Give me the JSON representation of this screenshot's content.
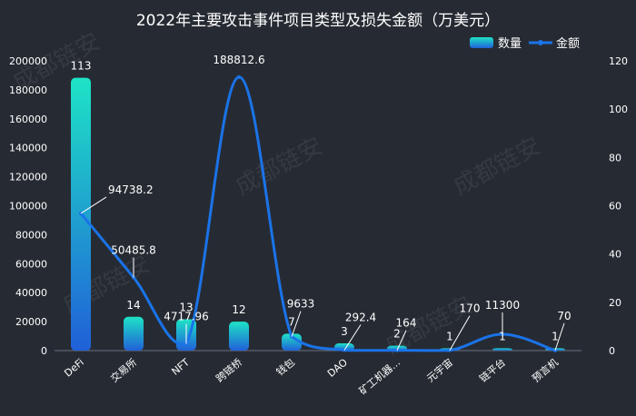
{
  "chart_data": {
    "type": "bar",
    "title": "2022年主要攻击事件项目类型及损失金额（万美元）",
    "categories": [
      "DeFi",
      "交易所",
      "NFT",
      "跨链桥",
      "钱包",
      "DAO",
      "矿工机器...",
      "元宇宙",
      "链平台",
      "预言机"
    ],
    "series": [
      {
        "name": "数量",
        "type": "bar",
        "axis": "right",
        "values": [
          113,
          14,
          13,
          12,
          7,
          3,
          2,
          1,
          1,
          1
        ]
      },
      {
        "name": "金额",
        "type": "line",
        "axis": "left",
        "values": [
          94738.2,
          50485.8,
          4717.96,
          188812.6,
          9633,
          292.4,
          164,
          170,
          11300,
          70
        ]
      }
    ],
    "value_labels": {
      "bar": [
        "113",
        "14",
        "13",
        "12",
        "7",
        "3",
        "2",
        "1",
        "1",
        "1"
      ],
      "line": [
        "94738.2",
        "50485.8",
        "4717.96",
        "188812.6",
        "9633",
        "292.4",
        "164",
        "170",
        "11300",
        "70"
      ]
    },
    "yleft": {
      "ticks": [
        0,
        20000,
        40000,
        60000,
        80000,
        100000,
        120000,
        140000,
        160000,
        180000,
        200000
      ],
      "range": [
        0,
        200000
      ]
    },
    "yright": {
      "ticks": [
        0,
        20,
        40,
        60,
        80,
        100,
        120
      ],
      "range": [
        0,
        120
      ]
    },
    "legend": {
      "position": "top-right",
      "items": [
        "数量",
        "金额"
      ]
    },
    "grid": false,
    "colors": {
      "background": "#262b33",
      "bar_top": "#1ee3c6",
      "bar_bottom": "#2060d8",
      "line": "#1a73e8",
      "text": "#ffffff"
    }
  },
  "watermark": "成都链安"
}
